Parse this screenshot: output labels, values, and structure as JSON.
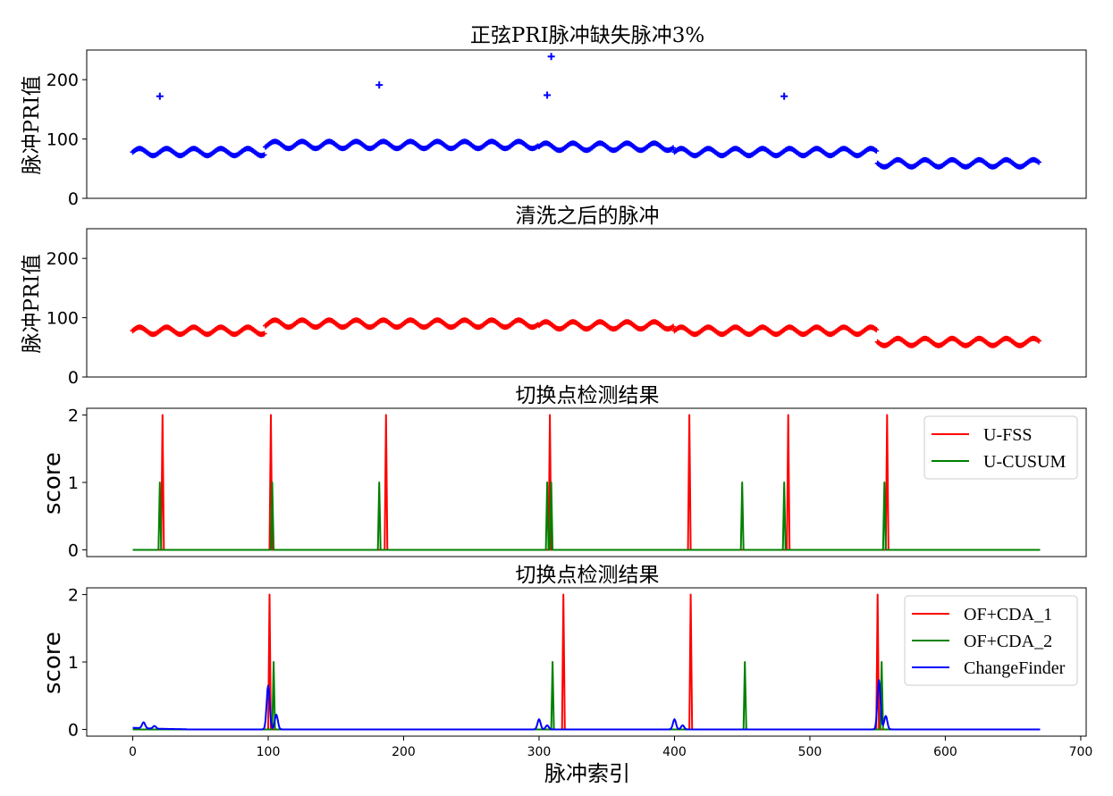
{
  "chart_data": [
    {
      "type": "scatter",
      "title": "正弦PRI脉冲缺失脉冲3%",
      "ylabel": "脉冲PRI值",
      "xlabel": "",
      "ylim": [
        0,
        250
      ],
      "yticks": [
        0,
        100,
        200
      ],
      "marker": "+",
      "color": "#0000ff",
      "segments": [
        {
          "x_start": 0,
          "x_end": 98,
          "mean": 78,
          "amplitude": 6,
          "period": 20
        },
        {
          "x_start": 98,
          "x_end": 300,
          "mean": 90,
          "amplitude": 6,
          "period": 20
        },
        {
          "x_start": 300,
          "x_end": 400,
          "mean": 87,
          "amplitude": 6,
          "period": 20
        },
        {
          "x_start": 400,
          "x_end": 550,
          "mean": 78,
          "amplitude": 6,
          "period": 20
        },
        {
          "x_start": 550,
          "x_end": 670,
          "mean": 59,
          "amplitude": 6,
          "period": 20
        }
      ],
      "outliers": [
        {
          "x": 20,
          "y": 172
        },
        {
          "x": 182,
          "y": 191
        },
        {
          "x": 306,
          "y": 174
        },
        {
          "x": 309,
          "y": 239
        },
        {
          "x": 481,
          "y": 172
        }
      ]
    },
    {
      "type": "scatter",
      "title": "清洗之后的脉冲",
      "ylabel": "脉冲PRI值",
      "xlabel": "",
      "ylim": [
        0,
        250
      ],
      "yticks": [
        0,
        100,
        200
      ],
      "marker": "+",
      "color": "#ff0000",
      "segments": [
        {
          "x_start": 0,
          "x_end": 98,
          "mean": 78,
          "amplitude": 6,
          "period": 20
        },
        {
          "x_start": 98,
          "x_end": 300,
          "mean": 90,
          "amplitude": 6,
          "period": 20
        },
        {
          "x_start": 300,
          "x_end": 400,
          "mean": 87,
          "amplitude": 6,
          "period": 20
        },
        {
          "x_start": 400,
          "x_end": 550,
          "mean": 78,
          "amplitude": 6,
          "period": 20
        },
        {
          "x_start": 550,
          "x_end": 670,
          "mean": 59,
          "amplitude": 6,
          "period": 20
        }
      ],
      "outliers": []
    },
    {
      "type": "line",
      "title": "切换点检测结果",
      "ylabel": "score",
      "xlabel": "",
      "ylim": [
        -0.1,
        2.1
      ],
      "yticks": [
        0,
        1,
        2
      ],
      "legend_position": "top-right",
      "series": [
        {
          "name": "U-FSS",
          "color": "#ff0000",
          "spikes": [
            {
              "x": 22,
              "h": 2
            },
            {
              "x": 102,
              "h": 2
            },
            {
              "x": 187,
              "h": 2
            },
            {
              "x": 308,
              "h": 2
            },
            {
              "x": 411,
              "h": 2
            },
            {
              "x": 484,
              "h": 2
            },
            {
              "x": 557,
              "h": 2
            }
          ]
        },
        {
          "name": "U-CUSUM",
          "color": "#008000",
          "spikes": [
            {
              "x": 20,
              "h": 1
            },
            {
              "x": 103,
              "h": 1
            },
            {
              "x": 182,
              "h": 1
            },
            {
              "x": 306,
              "h": 1
            },
            {
              "x": 309,
              "h": 1
            },
            {
              "x": 450,
              "h": 1
            },
            {
              "x": 481,
              "h": 1
            },
            {
              "x": 555,
              "h": 1
            }
          ]
        }
      ]
    },
    {
      "type": "line",
      "title": "切换点检测结果",
      "ylabel": "score",
      "xlabel": "脉冲索引",
      "ylim": [
        -0.1,
        2.1
      ],
      "yticks": [
        0,
        1,
        2
      ],
      "xticks": [
        0,
        100,
        200,
        300,
        400,
        500,
        600,
        700
      ],
      "legend_position": "top-right",
      "series": [
        {
          "name": "OF+CDA_1",
          "color": "#ff0000",
          "spikes": [
            {
              "x": 101,
              "h": 2
            },
            {
              "x": 318,
              "h": 2
            },
            {
              "x": 412,
              "h": 2
            },
            {
              "x": 550,
              "h": 2
            }
          ]
        },
        {
          "name": "OF+CDA_2",
          "color": "#008000",
          "spikes": [
            {
              "x": 104,
              "h": 1
            },
            {
              "x": 310,
              "h": 1
            },
            {
              "x": 452,
              "h": 1
            },
            {
              "x": 553,
              "h": 1
            }
          ]
        },
        {
          "name": "ChangeFinder",
          "color": "#0000ff",
          "bumps": [
            {
              "x": 8,
              "h": 0.09
            },
            {
              "x": 16,
              "h": 0.04
            },
            {
              "x": 100,
              "h": 0.65
            },
            {
              "x": 106,
              "h": 0.22
            },
            {
              "x": 300,
              "h": 0.15
            },
            {
              "x": 306,
              "h": 0.06
            },
            {
              "x": 400,
              "h": 0.15
            },
            {
              "x": 406,
              "h": 0.06
            },
            {
              "x": 551,
              "h": 0.73
            },
            {
              "x": 556,
              "h": 0.2
            }
          ]
        }
      ]
    }
  ]
}
